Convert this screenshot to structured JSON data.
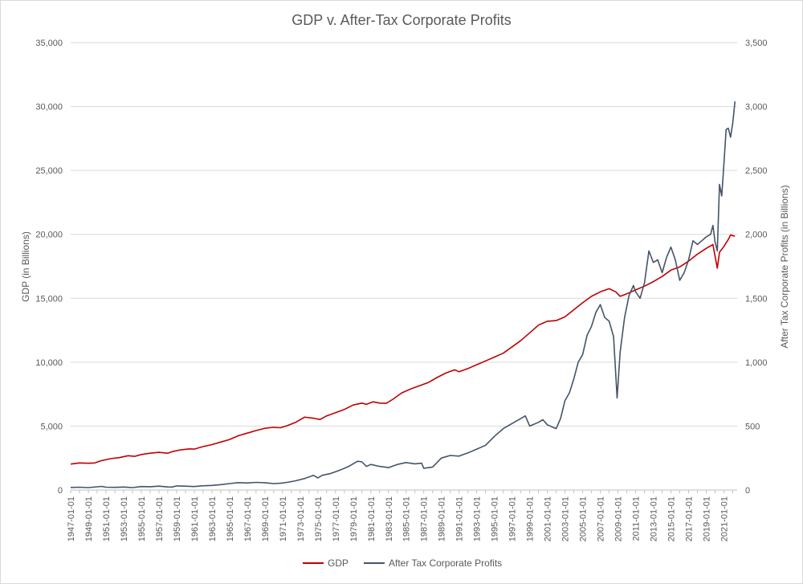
{
  "chart_data": {
    "type": "line",
    "title": "GDP v. After-Tax Corporate Profits",
    "ylabel": "GDP (in Billions)",
    "y2label": "After Tax Corporate Profits (in Billions)",
    "ylim": [
      0,
      35000
    ],
    "y2lim": [
      0,
      3500
    ],
    "y_ticks": [
      "0",
      "5,000",
      "10,000",
      "15,000",
      "20,000",
      "25,000",
      "30,000",
      "35,000"
    ],
    "y2_ticks": [
      "0",
      "500",
      "1,000",
      "1,500",
      "2,000",
      "2,500",
      "3,000",
      "3,500"
    ],
    "x_tick_labels": [
      "1947-01-01",
      "1949-01-01",
      "1951-01-01",
      "1953-01-01",
      "1955-01-01",
      "1957-01-01",
      "1959-01-01",
      "1961-01-01",
      "1963-01-01",
      "1965-01-01",
      "1967-01-01",
      "1969-01-01",
      "1971-01-01",
      "1973-01-01",
      "1975-01-01",
      "1977-01-01",
      "1979-01-01",
      "1981-01-01",
      "1983-01-01",
      "1985-01-01",
      "1987-01-01",
      "1989-01-01",
      "1991-01-01",
      "1993-01-01",
      "1995-01-01",
      "1997-01-01",
      "1999-01-01",
      "2001-01-01",
      "2003-01-01",
      "2005-01-01",
      "2007-01-01",
      "2009-01-01",
      "2011-01-01",
      "2013-01-01",
      "2015-01-01",
      "2017-01-01",
      "2019-01-01",
      "2021-01-01"
    ],
    "x_range": [
      1947.0,
      2022.5
    ],
    "legend_position": "bottom",
    "grid": true,
    "series": [
      {
        "name": "GDP",
        "axis": "left",
        "color": "#c00000",
        "points": [
          [
            1947.0,
            2030
          ],
          [
            1948.0,
            2120
          ],
          [
            1949.0,
            2090
          ],
          [
            1949.75,
            2120
          ],
          [
            1950.5,
            2300
          ],
          [
            1951.5,
            2450
          ],
          [
            1952.5,
            2530
          ],
          [
            1953.5,
            2680
          ],
          [
            1954.25,
            2630
          ],
          [
            1955.0,
            2780
          ],
          [
            1956.0,
            2880
          ],
          [
            1957.0,
            2950
          ],
          [
            1958.0,
            2880
          ],
          [
            1958.5,
            3000
          ],
          [
            1959.5,
            3150
          ],
          [
            1960.5,
            3220
          ],
          [
            1961.0,
            3200
          ],
          [
            1962.0,
            3400
          ],
          [
            1963.0,
            3550
          ],
          [
            1964.0,
            3750
          ],
          [
            1965.0,
            3950
          ],
          [
            1966.0,
            4250
          ],
          [
            1967.0,
            4450
          ],
          [
            1968.0,
            4650
          ],
          [
            1969.0,
            4830
          ],
          [
            1970.0,
            4900
          ],
          [
            1970.75,
            4870
          ],
          [
            1971.5,
            5030
          ],
          [
            1972.5,
            5300
          ],
          [
            1973.5,
            5700
          ],
          [
            1974.5,
            5620
          ],
          [
            1975.25,
            5520
          ],
          [
            1976.0,
            5800
          ],
          [
            1977.0,
            6050
          ],
          [
            1978.0,
            6300
          ],
          [
            1979.0,
            6650
          ],
          [
            1980.0,
            6800
          ],
          [
            1980.5,
            6700
          ],
          [
            1981.25,
            6900
          ],
          [
            1982.0,
            6800
          ],
          [
            1982.75,
            6780
          ],
          [
            1983.5,
            7100
          ],
          [
            1984.5,
            7600
          ],
          [
            1985.5,
            7900
          ],
          [
            1986.5,
            8150
          ],
          [
            1987.5,
            8400
          ],
          [
            1988.5,
            8800
          ],
          [
            1989.5,
            9150
          ],
          [
            1990.5,
            9400
          ],
          [
            1991.0,
            9250
          ],
          [
            1992.0,
            9500
          ],
          [
            1993.0,
            9800
          ],
          [
            1994.0,
            10100
          ],
          [
            1995.0,
            10400
          ],
          [
            1996.0,
            10700
          ],
          [
            1997.0,
            11200
          ],
          [
            1998.0,
            11700
          ],
          [
            1999.0,
            12300
          ],
          [
            2000.0,
            12900
          ],
          [
            2001.0,
            13200
          ],
          [
            2002.0,
            13250
          ],
          [
            2003.0,
            13550
          ],
          [
            2004.0,
            14100
          ],
          [
            2005.0,
            14650
          ],
          [
            2006.0,
            15150
          ],
          [
            2007.0,
            15500
          ],
          [
            2008.0,
            15750
          ],
          [
            2008.75,
            15500
          ],
          [
            2009.25,
            15150
          ],
          [
            2010.0,
            15350
          ],
          [
            2011.0,
            15650
          ],
          [
            2012.0,
            15950
          ],
          [
            2013.0,
            16300
          ],
          [
            2014.0,
            16700
          ],
          [
            2015.0,
            17200
          ],
          [
            2016.0,
            17450
          ],
          [
            2017.0,
            17900
          ],
          [
            2018.0,
            18450
          ],
          [
            2019.0,
            18900
          ],
          [
            2019.75,
            19200
          ],
          [
            2020.25,
            17350
          ],
          [
            2020.5,
            18600
          ],
          [
            2021.0,
            19050
          ],
          [
            2021.5,
            19600
          ],
          [
            2021.75,
            19950
          ],
          [
            2022.0,
            19900
          ],
          [
            2022.25,
            19850
          ]
        ]
      },
      {
        "name": "After Tax Corporate Profits",
        "axis": "right",
        "color": "#44546a",
        "points": [
          [
            1947.0,
            20
          ],
          [
            1948.0,
            22
          ],
          [
            1949.0,
            19
          ],
          [
            1950.0,
            25
          ],
          [
            1950.5,
            28
          ],
          [
            1951.0,
            22
          ],
          [
            1952.0,
            21
          ],
          [
            1953.0,
            23
          ],
          [
            1954.0,
            19
          ],
          [
            1955.0,
            27
          ],
          [
            1956.0,
            26
          ],
          [
            1957.0,
            30
          ],
          [
            1958.0,
            24
          ],
          [
            1958.5,
            23
          ],
          [
            1959.0,
            32
          ],
          [
            1960.0,
            30
          ],
          [
            1961.0,
            27
          ],
          [
            1962.0,
            33
          ],
          [
            1963.0,
            36
          ],
          [
            1964.0,
            42
          ],
          [
            1965.0,
            50
          ],
          [
            1966.0,
            58
          ],
          [
            1967.0,
            55
          ],
          [
            1968.0,
            60
          ],
          [
            1969.0,
            57
          ],
          [
            1970.0,
            50
          ],
          [
            1970.75,
            53
          ],
          [
            1971.5,
            60
          ],
          [
            1972.5,
            72
          ],
          [
            1973.5,
            90
          ],
          [
            1974.5,
            115
          ],
          [
            1975.0,
            95
          ],
          [
            1975.5,
            115
          ],
          [
            1976.5,
            130
          ],
          [
            1977.5,
            155
          ],
          [
            1978.5,
            185
          ],
          [
            1979.5,
            225
          ],
          [
            1980.0,
            220
          ],
          [
            1980.5,
            185
          ],
          [
            1981.0,
            200
          ],
          [
            1982.0,
            185
          ],
          [
            1983.0,
            175
          ],
          [
            1984.0,
            200
          ],
          [
            1985.0,
            215
          ],
          [
            1986.0,
            205
          ],
          [
            1986.75,
            210
          ],
          [
            1987.0,
            170
          ],
          [
            1988.0,
            180
          ],
          [
            1989.0,
            250
          ],
          [
            1990.0,
            270
          ],
          [
            1991.0,
            265
          ],
          [
            1992.0,
            290
          ],
          [
            1993.0,
            320
          ],
          [
            1994.0,
            350
          ],
          [
            1995.0,
            420
          ],
          [
            1996.0,
            480
          ],
          [
            1997.0,
            520
          ],
          [
            1998.0,
            560
          ],
          [
            1998.5,
            580
          ],
          [
            1999.0,
            500
          ],
          [
            2000.0,
            530
          ],
          [
            2000.5,
            550
          ],
          [
            2001.0,
            510
          ],
          [
            2002.0,
            480
          ],
          [
            2002.5,
            560
          ],
          [
            2003.0,
            700
          ],
          [
            2003.5,
            760
          ],
          [
            2004.0,
            870
          ],
          [
            2004.5,
            1000
          ],
          [
            2005.0,
            1060
          ],
          [
            2005.5,
            1210
          ],
          [
            2006.0,
            1280
          ],
          [
            2006.5,
            1390
          ],
          [
            2007.0,
            1450
          ],
          [
            2007.5,
            1350
          ],
          [
            2008.0,
            1320
          ],
          [
            2008.5,
            1200
          ],
          [
            2008.9,
            720
          ],
          [
            2009.25,
            1080
          ],
          [
            2009.75,
            1350
          ],
          [
            2010.25,
            1520
          ],
          [
            2010.75,
            1600
          ],
          [
            2011.0,
            1550
          ],
          [
            2011.5,
            1500
          ],
          [
            2012.0,
            1620
          ],
          [
            2012.5,
            1870
          ],
          [
            2013.0,
            1780
          ],
          [
            2013.5,
            1800
          ],
          [
            2014.0,
            1700
          ],
          [
            2014.5,
            1820
          ],
          [
            2015.0,
            1900
          ],
          [
            2015.5,
            1800
          ],
          [
            2016.0,
            1640
          ],
          [
            2016.5,
            1700
          ],
          [
            2017.0,
            1800
          ],
          [
            2017.5,
            1950
          ],
          [
            2018.0,
            1920
          ],
          [
            2018.5,
            1950
          ],
          [
            2019.0,
            1980
          ],
          [
            2019.5,
            2000
          ],
          [
            2019.75,
            2070
          ],
          [
            2020.0,
            1940
          ],
          [
            2020.25,
            1870
          ],
          [
            2020.5,
            2390
          ],
          [
            2020.75,
            2300
          ],
          [
            2021.0,
            2550
          ],
          [
            2021.25,
            2820
          ],
          [
            2021.5,
            2830
          ],
          [
            2021.75,
            2760
          ],
          [
            2022.0,
            2870
          ],
          [
            2022.25,
            3040
          ]
        ]
      }
    ]
  }
}
